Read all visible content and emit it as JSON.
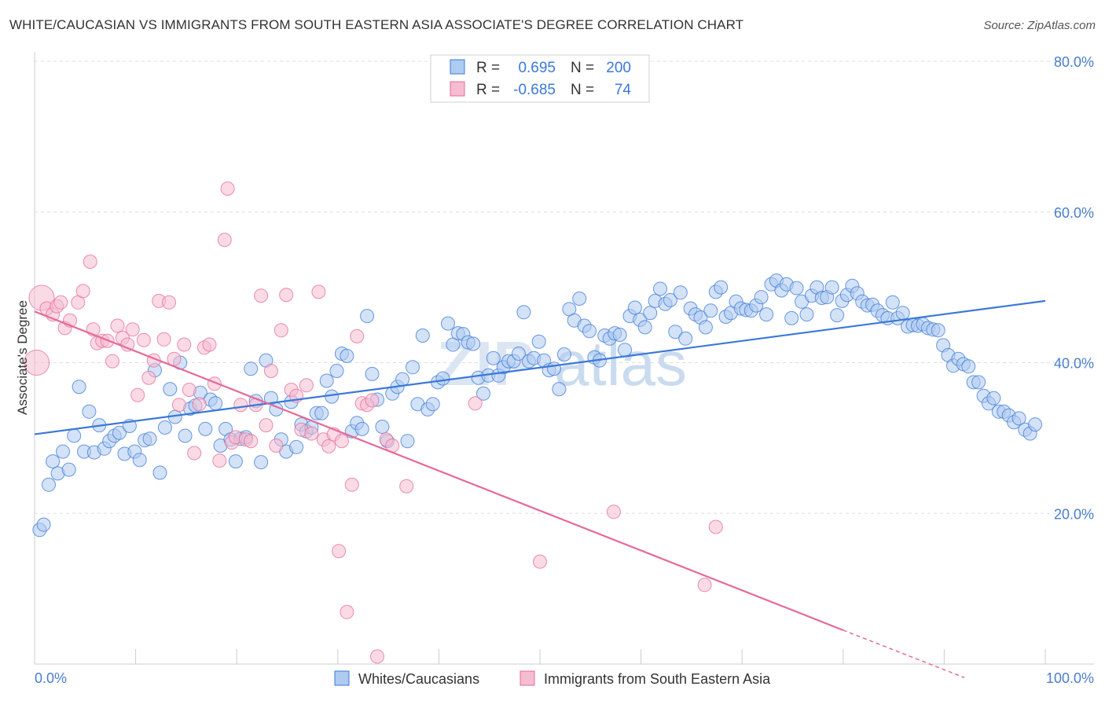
{
  "title": "WHITE/CAUCASIAN VS IMMIGRANTS FROM SOUTH EASTERN ASIA ASSOCIATE'S DEGREE CORRELATION CHART",
  "source": "Source: ZipAtlas.com",
  "watermark": {
    "zip": "ZIP",
    "atlas": "atlas"
  },
  "colors": {
    "blue": "#3b78d8",
    "blue_fill": "#aecbf0",
    "pink": "#e56a98",
    "pink_fill": "#f6bcd0",
    "grid": "#dddddd",
    "tick_text": "#4a7ecf"
  },
  "stats": {
    "r_label": "R =",
    "n_label": "N =",
    "rows": [
      {
        "r": "0.695",
        "n": "200",
        "color": "blue"
      },
      {
        "r": "-0.685",
        "n": "74",
        "color": "pink"
      }
    ]
  },
  "chart_data": {
    "type": "scatter",
    "xlabel": "",
    "ylabel": "Associate's Degree",
    "xlim": [
      0,
      100
    ],
    "ylim": [
      0,
      80
    ],
    "x_tick_labels": [
      "0.0%",
      "100.0%"
    ],
    "y_ticks": [
      20,
      40,
      60,
      80
    ],
    "y_tick_labels": [
      "20.0%",
      "40.0%",
      "60.0%",
      "80.0%"
    ],
    "grid": true,
    "legend_position": "bottom",
    "series": [
      {
        "name": "Whites/Caucasians",
        "color": "blue",
        "trend": {
          "x0": 0,
          "y0": 30.5,
          "x1": 100,
          "y1": 48.2
        },
        "points": [
          [
            0.5,
            17.8
          ],
          [
            0.9,
            18.5
          ],
          [
            1.4,
            23.8
          ],
          [
            1.8,
            26.9
          ],
          [
            2.3,
            25.3
          ],
          [
            2.8,
            28.2
          ],
          [
            3.4,
            25.8
          ],
          [
            3.9,
            30.3
          ],
          [
            4.4,
            36.8
          ],
          [
            4.9,
            28.2
          ],
          [
            5.4,
            33.5
          ],
          [
            5.9,
            28.1
          ],
          [
            6.4,
            31.7
          ],
          [
            6.9,
            28.6
          ],
          [
            7.4,
            29.6
          ],
          [
            7.9,
            30.3
          ],
          [
            8.4,
            30.7
          ],
          [
            8.9,
            27.9
          ],
          [
            9.4,
            31.6
          ],
          [
            9.9,
            28.2
          ],
          [
            10.4,
            27.1
          ],
          [
            10.9,
            29.7
          ],
          [
            11.4,
            29.9
          ],
          [
            11.9,
            39.0
          ],
          [
            12.4,
            25.4
          ],
          [
            12.9,
            31.4
          ],
          [
            13.4,
            36.5
          ],
          [
            13.9,
            32.8
          ],
          [
            14.4,
            40.0
          ],
          [
            14.9,
            30.3
          ],
          [
            15.4,
            33.9
          ],
          [
            15.9,
            34.3
          ],
          [
            16.4,
            36.0
          ],
          [
            16.9,
            31.2
          ],
          [
            17.4,
            35.1
          ],
          [
            17.9,
            34.6
          ],
          [
            18.4,
            29.0
          ],
          [
            18.9,
            31.2
          ],
          [
            19.4,
            29.8
          ],
          [
            19.9,
            26.9
          ],
          [
            20.4,
            29.9
          ],
          [
            20.9,
            30.1
          ],
          [
            21.4,
            39.2
          ],
          [
            21.9,
            34.9
          ],
          [
            22.4,
            26.8
          ],
          [
            22.9,
            40.3
          ],
          [
            23.4,
            35.3
          ],
          [
            23.9,
            33.8
          ],
          [
            24.4,
            29.8
          ],
          [
            24.9,
            28.2
          ],
          [
            25.4,
            34.8
          ],
          [
            25.9,
            28.8
          ],
          [
            26.4,
            31.8
          ],
          [
            26.9,
            30.9
          ],
          [
            27.4,
            31.4
          ],
          [
            27.9,
            33.3
          ],
          [
            28.4,
            33.3
          ],
          [
            28.9,
            37.6
          ],
          [
            29.4,
            35.5
          ],
          [
            29.9,
            38.9
          ],
          [
            30.4,
            41.2
          ],
          [
            30.9,
            40.9
          ],
          [
            31.4,
            30.9
          ],
          [
            31.9,
            32.0
          ],
          [
            32.4,
            31.2
          ],
          [
            32.9,
            46.2
          ],
          [
            33.4,
            38.5
          ],
          [
            33.9,
            35.1
          ],
          [
            34.4,
            31.5
          ],
          [
            34.9,
            29.6
          ],
          [
            35.4,
            35.9
          ],
          [
            35.9,
            36.8
          ],
          [
            36.4,
            37.8
          ],
          [
            36.9,
            29.6
          ],
          [
            37.4,
            39.4
          ],
          [
            37.9,
            34.5
          ],
          [
            38.4,
            43.6
          ],
          [
            38.9,
            33.8
          ],
          [
            39.4,
            34.5
          ],
          [
            39.9,
            37.4
          ],
          [
            40.4,
            37.9
          ],
          [
            40.9,
            45.2
          ],
          [
            41.4,
            42.4
          ],
          [
            41.9,
            43.9
          ],
          [
            42.4,
            43.8
          ],
          [
            42.9,
            42.7
          ],
          [
            43.4,
            42.5
          ],
          [
            43.9,
            38.0
          ],
          [
            44.4,
            35.9
          ],
          [
            44.9,
            38.3
          ],
          [
            45.4,
            40.6
          ],
          [
            45.9,
            38.3
          ],
          [
            46.4,
            39.4
          ],
          [
            46.9,
            40.2
          ],
          [
            47.4,
            40.2
          ],
          [
            47.9,
            41.2
          ],
          [
            48.4,
            46.7
          ],
          [
            48.9,
            40.2
          ],
          [
            49.4,
            40.6
          ],
          [
            49.9,
            42.8
          ],
          [
            50.4,
            40.3
          ],
          [
            50.9,
            39.0
          ],
          [
            51.4,
            39.2
          ],
          [
            51.9,
            36.5
          ],
          [
            52.4,
            41.1
          ],
          [
            52.9,
            47.1
          ],
          [
            53.4,
            45.6
          ],
          [
            53.9,
            48.5
          ],
          [
            54.4,
            44.9
          ],
          [
            54.9,
            44.2
          ],
          [
            55.4,
            40.7
          ],
          [
            55.9,
            40.3
          ],
          [
            56.4,
            43.6
          ],
          [
            56.9,
            43.2
          ],
          [
            57.4,
            43.9
          ],
          [
            57.9,
            43.7
          ],
          [
            58.4,
            41.7
          ],
          [
            58.9,
            46.2
          ],
          [
            59.4,
            47.3
          ],
          [
            59.9,
            45.7
          ],
          [
            60.4,
            44.7
          ],
          [
            60.9,
            46.6
          ],
          [
            61.4,
            48.2
          ],
          [
            61.9,
            49.8
          ],
          [
            62.4,
            47.8
          ],
          [
            62.9,
            48.3
          ],
          [
            63.4,
            44.1
          ],
          [
            63.9,
            49.3
          ],
          [
            64.4,
            43.2
          ],
          [
            64.9,
            47.2
          ],
          [
            65.4,
            46.4
          ],
          [
            65.9,
            46.0
          ],
          [
            66.4,
            44.7
          ],
          [
            66.9,
            46.9
          ],
          [
            67.4,
            49.4
          ],
          [
            67.9,
            50.0
          ],
          [
            68.4,
            46.1
          ],
          [
            68.9,
            46.6
          ],
          [
            69.4,
            48.1
          ],
          [
            69.9,
            47.2
          ],
          [
            70.4,
            47.0
          ],
          [
            70.9,
            46.9
          ],
          [
            71.4,
            47.6
          ],
          [
            71.9,
            48.7
          ],
          [
            72.4,
            46.4
          ],
          [
            72.9,
            50.4
          ],
          [
            73.4,
            50.9
          ],
          [
            73.9,
            49.6
          ],
          [
            74.4,
            50.4
          ],
          [
            74.9,
            45.9
          ],
          [
            75.4,
            49.9
          ],
          [
            75.9,
            48.1
          ],
          [
            76.4,
            46.4
          ],
          [
            76.9,
            48.9
          ],
          [
            77.4,
            50.0
          ],
          [
            77.9,
            48.6
          ],
          [
            78.4,
            48.7
          ],
          [
            78.9,
            50.0
          ],
          [
            79.4,
            46.3
          ],
          [
            79.9,
            48.2
          ],
          [
            80.4,
            49.0
          ],
          [
            80.9,
            50.2
          ],
          [
            81.4,
            49.2
          ],
          [
            81.9,
            48.1
          ],
          [
            82.4,
            47.6
          ],
          [
            82.9,
            47.7
          ],
          [
            83.4,
            46.9
          ],
          [
            83.9,
            46.3
          ],
          [
            84.4,
            45.9
          ],
          [
            84.9,
            48.0
          ],
          [
            85.4,
            45.9
          ],
          [
            85.9,
            46.6
          ],
          [
            86.4,
            44.8
          ],
          [
            86.9,
            45.0
          ],
          [
            87.4,
            44.9
          ],
          [
            87.9,
            45.1
          ],
          [
            88.4,
            44.6
          ],
          [
            88.9,
            44.4
          ],
          [
            89.4,
            44.3
          ],
          [
            89.9,
            42.3
          ],
          [
            90.4,
            41.0
          ],
          [
            90.9,
            39.6
          ],
          [
            91.4,
            40.5
          ],
          [
            91.9,
            39.8
          ],
          [
            92.4,
            39.5
          ],
          [
            92.9,
            37.4
          ],
          [
            93.4,
            37.4
          ],
          [
            93.9,
            35.6
          ],
          [
            94.4,
            34.6
          ],
          [
            94.9,
            35.3
          ],
          [
            95.4,
            33.5
          ],
          [
            95.9,
            33.5
          ],
          [
            96.4,
            33.0
          ],
          [
            96.9,
            32.1
          ],
          [
            97.4,
            32.6
          ],
          [
            98.0,
            31.1
          ],
          [
            98.5,
            30.6
          ],
          [
            99.0,
            31.8
          ]
        ]
      },
      {
        "name": "Immigrants from South Eastern Asia",
        "color": "pink",
        "trend": {
          "x0": 0,
          "y0": 46.8,
          "x1": 80,
          "y1": 4.5,
          "dash_to_x": 92,
          "dash_to_y": -1.8
        },
        "points": [
          [
            0.2,
            40.0
          ],
          [
            0.7,
            48.6
          ],
          [
            1.2,
            47.2
          ],
          [
            1.8,
            46.4
          ],
          [
            2.2,
            47.5
          ],
          [
            2.6,
            48.0
          ],
          [
            3.0,
            44.6
          ],
          [
            3.5,
            45.6
          ],
          [
            4.3,
            48.0
          ],
          [
            4.8,
            49.5
          ],
          [
            5.5,
            53.4
          ],
          [
            5.8,
            44.4
          ],
          [
            6.2,
            42.6
          ],
          [
            6.7,
            42.9
          ],
          [
            7.2,
            42.9
          ],
          [
            7.7,
            40.2
          ],
          [
            8.2,
            44.9
          ],
          [
            8.7,
            43.3
          ],
          [
            9.2,
            42.4
          ],
          [
            9.7,
            44.4
          ],
          [
            10.2,
            35.7
          ],
          [
            10.8,
            43.0
          ],
          [
            11.3,
            38.0
          ],
          [
            11.8,
            40.3
          ],
          [
            12.3,
            48.2
          ],
          [
            12.8,
            43.1
          ],
          [
            13.3,
            48.0
          ],
          [
            13.8,
            40.5
          ],
          [
            14.3,
            34.4
          ],
          [
            14.8,
            42.4
          ],
          [
            15.3,
            36.4
          ],
          [
            15.8,
            28.0
          ],
          [
            16.3,
            34.5
          ],
          [
            16.8,
            42.0
          ],
          [
            17.3,
            42.4
          ],
          [
            17.8,
            37.2
          ],
          [
            18.3,
            27.0
          ],
          [
            18.8,
            56.3
          ],
          [
            19.1,
            63.1
          ],
          [
            19.5,
            29.4
          ],
          [
            19.9,
            30.1
          ],
          [
            20.4,
            34.4
          ],
          [
            20.9,
            29.8
          ],
          [
            21.4,
            29.6
          ],
          [
            21.9,
            34.4
          ],
          [
            22.4,
            48.9
          ],
          [
            22.9,
            31.7
          ],
          [
            23.4,
            38.9
          ],
          [
            23.9,
            29.0
          ],
          [
            24.4,
            44.3
          ],
          [
            24.9,
            49.0
          ],
          [
            25.4,
            36.4
          ],
          [
            25.9,
            35.6
          ],
          [
            26.4,
            31.1
          ],
          [
            26.9,
            37.0
          ],
          [
            27.4,
            30.6
          ],
          [
            28.1,
            49.4
          ],
          [
            28.6,
            29.8
          ],
          [
            29.1,
            28.9
          ],
          [
            29.6,
            30.5
          ],
          [
            30.1,
            15.0
          ],
          [
            30.4,
            29.6
          ],
          [
            30.9,
            6.9
          ],
          [
            31.4,
            23.8
          ],
          [
            31.9,
            43.5
          ],
          [
            32.4,
            34.6
          ],
          [
            32.9,
            34.4
          ],
          [
            33.4,
            35.0
          ],
          [
            33.9,
            1.0
          ],
          [
            34.8,
            29.8
          ],
          [
            35.4,
            29.0
          ],
          [
            36.8,
            23.6
          ],
          [
            43.6,
            34.6
          ],
          [
            50.0,
            13.6
          ],
          [
            57.3,
            20.2
          ],
          [
            66.3,
            10.5
          ],
          [
            67.4,
            18.2
          ]
        ]
      }
    ]
  }
}
